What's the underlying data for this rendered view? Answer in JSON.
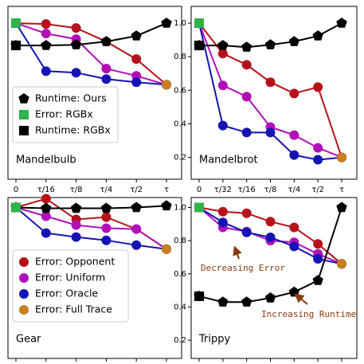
{
  "chart_data": [
    {
      "type": "line",
      "title": "Mandelbulb",
      "categories": [
        "0",
        "τ/16",
        "τ/8",
        "τ/4",
        "τ/2",
        "τ"
      ],
      "ylim": [
        0.07,
        1.1
      ],
      "legend": "lower left",
      "series": [
        {
          "color": "#b5121b",
          "marker": "circle",
          "values": [
            1.0,
            0.995,
            0.971,
            0.89,
            0.786,
            0.633
          ]
        },
        {
          "color": "#b010b8",
          "marker": "circle",
          "values": [
            1.0,
            0.938,
            0.905,
            0.729,
            0.686,
            0.633
          ]
        },
        {
          "color": "#1414b4",
          "marker": "circle",
          "values": [
            1.0,
            0.714,
            0.705,
            0.667,
            0.648,
            0.633
          ]
        },
        {
          "color": "#c8801e",
          "marker": "circle",
          "values": [
            null,
            null,
            null,
            null,
            null,
            0.633
          ]
        },
        {
          "name": "Runtime: Ours",
          "color": "#000000",
          "marker": "pentagon",
          "values": [
            0.867,
            0.867,
            0.871,
            0.89,
            0.924,
            1.0
          ]
        },
        {
          "name": "Error: RGBx",
          "color": "#2db34a",
          "marker": "square",
          "values": [
            1.0,
            null,
            null,
            null,
            null,
            null
          ]
        },
        {
          "name": "Runtime: RGBx",
          "color": "#000000",
          "marker": "square",
          "values": [
            0.867,
            null,
            null,
            null,
            null,
            null
          ]
        }
      ]
    },
    {
      "type": "line",
      "title": "Mandelbrot",
      "categories": [
        "0",
        "τ/32",
        "τ/16",
        "τ/8",
        "τ/4",
        "τ/2",
        "τ"
      ],
      "ylim": [
        0.07,
        1.1
      ],
      "yticks": [
        0.2,
        0.4,
        0.6,
        0.8,
        {
          "value": 1,
          "label": "1.0"
        }
      ],
      "series": [
        {
          "color": "#b5121b",
          "marker": "circle",
          "values": [
            1.0,
            0.819,
            0.752,
            0.648,
            0.581,
            0.619,
            0.2
          ]
        },
        {
          "color": "#b010b8",
          "marker": "circle",
          "values": [
            1.0,
            0.629,
            0.562,
            0.381,
            0.333,
            0.257,
            0.2
          ]
        },
        {
          "color": "#1414b4",
          "marker": "circle",
          "values": [
            1.0,
            0.39,
            0.348,
            0.348,
            0.214,
            0.186,
            0.2
          ]
        },
        {
          "color": "#c8801e",
          "marker": "circle",
          "values": [
            null,
            null,
            null,
            null,
            null,
            null,
            0.2
          ]
        },
        {
          "color": "#000000",
          "marker": "pentagon",
          "values": [
            0.867,
            0.867,
            0.857,
            0.871,
            0.89,
            0.924,
            1.0
          ]
        },
        {
          "color": "#2db34a",
          "marker": "square",
          "values": [
            1.0,
            null,
            null,
            null,
            null,
            null,
            null
          ]
        },
        {
          "color": "#000000",
          "marker": "square",
          "values": [
            0.867,
            null,
            null,
            null,
            null,
            null,
            null
          ]
        }
      ]
    },
    {
      "type": "line",
      "title": "Gear",
      "categories": [
        null,
        null,
        null,
        null,
        null,
        null
      ],
      "ylim": [
        0.09,
        1.06
      ],
      "legend": "lower left",
      "series": [
        {
          "name": "Error: Opponent",
          "color": "#b5121b",
          "marker": "circle",
          "values": [
            1.0,
            1.053,
            0.928,
            0.942,
            0.87,
            0.749
          ]
        },
        {
          "name": "Error: Uniform",
          "color": "#b010b8",
          "marker": "circle",
          "values": [
            1.0,
            0.947,
            0.894,
            0.875,
            0.87,
            0.749
          ]
        },
        {
          "name": "Error: Oracle",
          "color": "#1414b4",
          "marker": "circle",
          "values": [
            1.0,
            0.846,
            0.822,
            0.802,
            0.773,
            0.749
          ]
        },
        {
          "name": "Error: Full Trace",
          "color": "#c8801e",
          "marker": "circle",
          "values": [
            null,
            null,
            null,
            null,
            null,
            0.749
          ]
        },
        {
          "color": "#000000",
          "marker": "pentagon",
          "values": [
            1.0,
            0.995,
            0.995,
            0.995,
            1.0,
            1.01
          ]
        },
        {
          "color": "#2db34a",
          "marker": "square",
          "values": [
            1.0,
            null,
            null,
            null,
            null,
            null
          ]
        }
      ]
    },
    {
      "type": "line",
      "title": "Trippy",
      "categories": [
        null,
        null,
        null,
        null,
        null,
        null,
        null
      ],
      "ylim": [
        0.09,
        1.06
      ],
      "yticks": [
        0.2,
        0.4,
        0.6,
        0.8,
        {
          "value": 1,
          "label": "1.0"
        }
      ],
      "annotations": [
        {
          "text": "Decreasing Error"
        },
        {
          "text": "Increasing Runtime"
        }
      ],
      "series": [
        {
          "color": "#b5121b",
          "marker": "circle",
          "values": [
            1.0,
            0.975,
            0.965,
            0.915,
            0.88,
            0.78,
            0.66
          ]
        },
        {
          "color": "#b010b8",
          "marker": "circle",
          "values": [
            1.0,
            0.88,
            0.855,
            0.8,
            0.79,
            0.72,
            0.66
          ]
        },
        {
          "color": "#1414b4",
          "marker": "circle",
          "values": [
            1.0,
            0.91,
            0.85,
            0.82,
            0.765,
            0.69,
            0.66
          ]
        },
        {
          "color": "#c8801e",
          "marker": "circle",
          "values": [
            null,
            null,
            null,
            null,
            null,
            null,
            0.66
          ]
        },
        {
          "color": "#000000",
          "marker": "pentagon",
          "values": [
            0.465,
            0.43,
            0.43,
            0.455,
            0.49,
            0.56,
            1.0
          ]
        },
        {
          "color": "#2db34a",
          "marker": "square",
          "values": [
            1.0,
            null,
            null,
            null,
            null,
            null,
            null
          ]
        },
        {
          "color": "#000000",
          "marker": "square",
          "values": [
            0.465,
            null,
            null,
            null,
            null,
            null,
            null
          ]
        }
      ]
    }
  ]
}
